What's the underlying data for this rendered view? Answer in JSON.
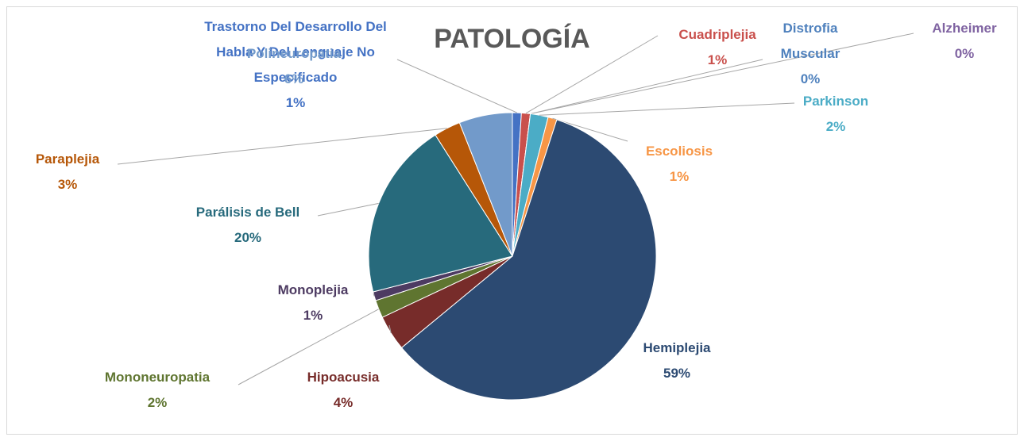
{
  "chart_data": {
    "type": "pie",
    "title": "PATOLOGÍA",
    "categories": [
      "Trastorno Del Desarrollo Del Habla Y Del Lenguaje No Especificado",
      "Cuadriplejia",
      "Distrofia Muscular",
      "Alzheimer",
      "Parkinson",
      "Escoliosis",
      "Hemiplejia",
      "Hipoacusia",
      "Mononeuropatia",
      "Monoplejia",
      "Parálisis de Bell",
      "Paraplejia",
      "Polineuropatia"
    ],
    "values": [
      1,
      1,
      0,
      0,
      2,
      1,
      59,
      4,
      2,
      1,
      20,
      3,
      6
    ],
    "value_labels": [
      "1%",
      "1%",
      "0%",
      "0%",
      "2%",
      "1%",
      "59%",
      "4%",
      "2%",
      "1%",
      "20%",
      "3%",
      "6%"
    ],
    "colors": [
      "#4472c4",
      "#c9504c",
      "#4f81bd",
      "#8064a2",
      "#4bacc6",
      "#f79646",
      "#2c4a72",
      "#772c2a",
      "#5f7530",
      "#4d3b62",
      "#276a7c",
      "#b65708",
      "#729aca"
    ]
  }
}
